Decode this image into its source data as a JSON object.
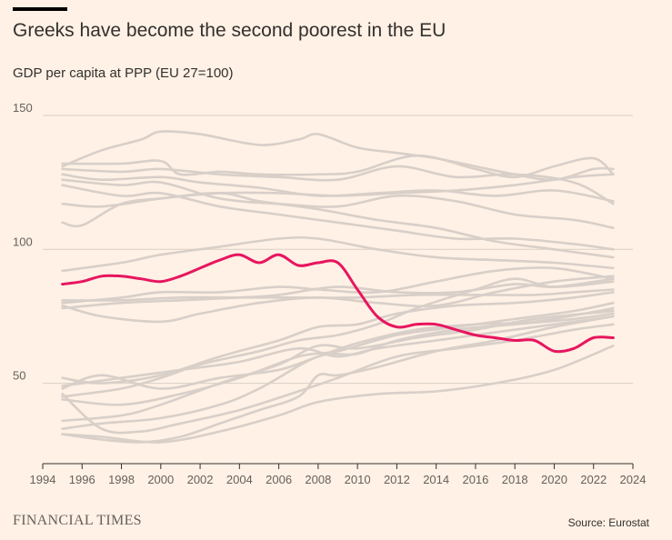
{
  "header": {
    "title": "Greeks have become the second poorest in the EU",
    "subtitle": "GDP per capita at PPP (EU 27=100)"
  },
  "footer": {
    "brand": "FINANCIAL TIMES",
    "source": "Source: Eurostat"
  },
  "colors": {
    "background": "#fff1e5",
    "gridline": "#d9cfc6",
    "other_countries": "#d8cfc9",
    "highlight": "#e8155f"
  },
  "chart_data": {
    "type": "line",
    "title": "Greeks have become the second poorest in the EU",
    "subtitle": "GDP per capita at PPP (EU 27=100)",
    "xlabel": "",
    "ylabel": "",
    "xlim": [
      1994,
      2024
    ],
    "ylim": [
      20,
      150
    ],
    "x_ticks": [
      1994,
      1996,
      1998,
      2000,
      2002,
      2004,
      2006,
      2008,
      2010,
      2012,
      2014,
      2016,
      2018,
      2020,
      2022,
      2024
    ],
    "y_ticks": [
      50,
      100,
      150
    ],
    "grid": true,
    "legend": "none",
    "highlight_series": {
      "x": [
        1995,
        1996,
        1997,
        1998,
        1999,
        2000,
        2001,
        2002,
        2003,
        2004,
        2005,
        2006,
        2007,
        2008,
        2009,
        2010,
        2011,
        2012,
        2013,
        2014,
        2015,
        2016,
        2017,
        2018,
        2019,
        2020,
        2021,
        2022,
        2023
      ],
      "values": [
        87,
        88,
        90,
        90,
        89,
        88,
        90,
        93,
        96,
        98,
        95,
        98,
        94,
        95,
        95,
        85,
        75,
        71,
        72,
        72,
        70,
        68,
        67,
        66,
        66,
        62,
        63,
        67,
        67
      ]
    },
    "background_series": [
      {
        "x": [
          1995,
          1997,
          1999,
          2000,
          2002,
          2005,
          2007,
          2008,
          2010,
          2012,
          2014,
          2016,
          2018,
          2020,
          2022,
          2023
        ],
        "values": [
          131,
          137,
          141,
          144,
          143,
          139,
          141,
          143,
          138,
          136,
          134,
          131,
          128,
          126,
          130,
          130
        ]
      },
      {
        "x": [
          1995,
          1998,
          2000,
          2001,
          2003,
          2005,
          2008,
          2010,
          2013,
          2016,
          2018,
          2020,
          2022,
          2023
        ],
        "values": [
          132,
          132,
          133,
          128,
          129,
          128,
          128,
          129,
          135,
          130,
          127,
          131,
          134,
          128
        ]
      },
      {
        "x": [
          1995,
          1998,
          2000,
          2003,
          2006,
          2009,
          2012,
          2015,
          2018,
          2021,
          2023
        ],
        "values": [
          130,
          129,
          130,
          128,
          127,
          126,
          131,
          127,
          128,
          125,
          117
        ]
      },
      {
        "x": [
          1995,
          1997,
          2000,
          2002,
          2005,
          2008,
          2011,
          2014,
          2017,
          2020,
          2023
        ],
        "values": [
          128,
          126,
          127,
          125,
          123,
          120,
          121,
          122,
          120,
          122,
          118
        ]
      },
      {
        "x": [
          1995,
          1998,
          2000,
          2003,
          2006,
          2009,
          2012,
          2015,
          2018,
          2021,
          2023
        ],
        "values": [
          126,
          124,
          125,
          119,
          117,
          116,
          120,
          118,
          113,
          111,
          108
        ]
      },
      {
        "x": [
          1995,
          1998,
          2000,
          2003,
          2006,
          2009,
          2012,
          2015,
          2018,
          2021,
          2023
        ],
        "values": [
          124,
          120,
          121,
          116,
          113,
          110,
          107,
          104,
          104,
          102,
          100
        ]
      },
      {
        "x": [
          1995,
          1996,
          1998,
          2000,
          2003,
          2006,
          2009,
          2012,
          2015,
          2018,
          2021,
          2023
        ],
        "values": [
          110,
          109,
          117,
          119,
          121,
          121,
          120,
          121,
          122,
          124,
          127,
          128
        ]
      },
      {
        "x": [
          1995,
          1997,
          2000,
          2003,
          2005,
          2008,
          2011,
          2014,
          2017,
          2020,
          2023
        ],
        "values": [
          117,
          116,
          119,
          121,
          118,
          115,
          111,
          108,
          103,
          100,
          97
        ]
      },
      {
        "x": [
          1995,
          1998,
          2000,
          2003,
          2006,
          2008,
          2011,
          2014,
          2017,
          2020,
          2023
        ],
        "values": [
          92,
          95,
          98,
          101,
          104,
          104,
          100,
          97,
          96,
          95,
          93
        ]
      },
      {
        "x": [
          1995,
          1998,
          2000,
          2003,
          2006,
          2008,
          2011,
          2014,
          2017,
          2020,
          2023
        ],
        "values": [
          80,
          82,
          84,
          84,
          86,
          85,
          84,
          88,
          92,
          93,
          89
        ]
      },
      {
        "x": [
          1995,
          1998,
          2001,
          2004,
          2007,
          2010,
          2013,
          2016,
          2019,
          2021,
          2023
        ],
        "values": [
          81,
          81,
          82,
          82,
          82,
          82,
          83,
          83,
          83,
          84,
          85
        ]
      },
      {
        "x": [
          1995,
          1997,
          2000,
          2002,
          2005,
          2008,
          2011,
          2014,
          2017,
          2020,
          2023
        ],
        "values": [
          79,
          75,
          73,
          76,
          80,
          82,
          80,
          79,
          84,
          88,
          90
        ]
      },
      {
        "x": [
          1995,
          1998,
          2001,
          2004,
          2006,
          2009,
          2012,
          2015,
          2018,
          2020,
          2023
        ],
        "values": [
          78,
          80,
          81,
          82,
          83,
          86,
          84,
          84,
          87,
          86,
          89
        ]
      },
      {
        "x": [
          1995,
          1998,
          2000,
          2002,
          2005,
          2007,
          2009,
          2011,
          2013,
          2016,
          2018,
          2020,
          2023
        ],
        "values": [
          45,
          48,
          52,
          57,
          62,
          66,
          68,
          72,
          78,
          85,
          89,
          86,
          88
        ]
      },
      {
        "x": [
          1995,
          1997,
          2000,
          2003,
          2006,
          2008,
          2010,
          2012,
          2015,
          2018,
          2021,
          2023
        ],
        "values": [
          52,
          50,
          53,
          60,
          66,
          71,
          72,
          76,
          79,
          80,
          82,
          84
        ]
      },
      {
        "x": [
          1995,
          1998,
          2001,
          2004,
          2007,
          2009,
          2011,
          2014,
          2017,
          2020,
          2023
        ],
        "values": [
          49,
          52,
          55,
          58,
          63,
          60,
          63,
          66,
          69,
          72,
          75
        ]
      },
      {
        "x": [
          1995,
          1997,
          2000,
          2003,
          2006,
          2008,
          2010,
          2013,
          2016,
          2019,
          2023
        ],
        "values": [
          48,
          53,
          48,
          52,
          55,
          60,
          65,
          70,
          72,
          73,
          78
        ]
      },
      {
        "x": [
          1995,
          1998,
          2001,
          2004,
          2007,
          2009,
          2012,
          2015,
          2018,
          2021,
          2023
        ],
        "values": [
          44,
          42,
          46,
          52,
          60,
          62,
          68,
          71,
          74,
          77,
          80
        ]
      },
      {
        "x": [
          1995,
          1998,
          2000,
          2003,
          2006,
          2008,
          2010,
          2013,
          2016,
          2019,
          2023
        ],
        "values": [
          36,
          38,
          42,
          50,
          57,
          64,
          63,
          67,
          70,
          74,
          77
        ]
      },
      {
        "x": [
          1995,
          1997,
          2000,
          2003,
          2005,
          2008,
          2010,
          2012,
          2015,
          2018,
          2021,
          2023
        ],
        "values": [
          33,
          35,
          37,
          42,
          48,
          60,
          61,
          66,
          70,
          72,
          74,
          76
        ]
      },
      {
        "x": [
          1995,
          1997,
          1999,
          2001,
          2003,
          2005,
          2007,
          2008,
          2009,
          2011,
          2014,
          2017,
          2020,
          2023
        ],
        "values": [
          31,
          29,
          28,
          30,
          35,
          40,
          45,
          53,
          53,
          56,
          62,
          66,
          71,
          75
        ]
      },
      {
        "x": [
          1995,
          1997,
          2000,
          2003,
          2006,
          2008,
          2011,
          2014,
          2017,
          2020,
          2023
        ],
        "values": [
          31,
          30,
          28,
          32,
          38,
          43,
          46,
          47,
          50,
          55,
          64
        ]
      },
      {
        "x": [
          1995,
          1997,
          1999,
          2001,
          2004,
          2007,
          2009,
          2012,
          2015,
          2018,
          2021,
          2023
        ],
        "values": [
          46,
          33,
          32,
          35,
          40,
          47,
          52,
          60,
          63,
          66,
          70,
          72
        ]
      }
    ]
  }
}
